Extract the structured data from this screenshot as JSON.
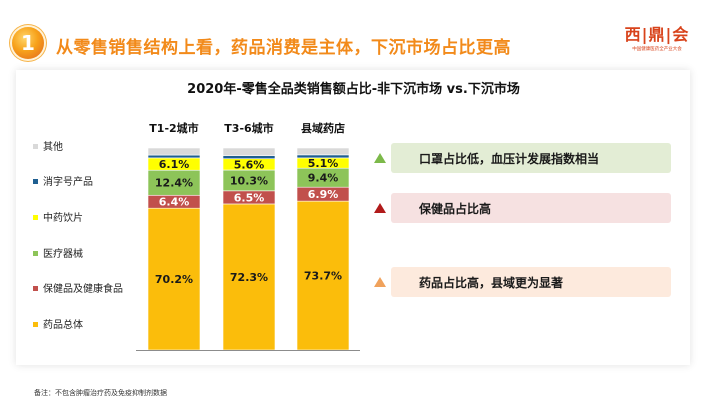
{
  "header": {
    "badge_number": "1",
    "headline": "从零售销售结构上看，药品消费是主体，下沉市场占比更高",
    "logo_text": "西|鼎|会",
    "logo_subtext": "中国健康医药全产业大会"
  },
  "chart_data": {
    "type": "bar",
    "stacked": true,
    "normalized": true,
    "title": "2020年-零售全品类销售额占比-非下沉市场 vs.下沉市场",
    "categories": [
      "T1-2城市",
      "T3-6城市",
      "县域药店"
    ],
    "series": [
      {
        "name": "药品总体",
        "color": "#fbbd0b",
        "values": [
          70.2,
          72.3,
          73.7
        ],
        "labels": [
          "70.2%",
          "72.3%",
          "73.7%"
        ]
      },
      {
        "name": "保健品及健康食品",
        "color": "#c1504c",
        "values": [
          6.4,
          6.5,
          6.9
        ],
        "labels": [
          "6.4%",
          "6.5%",
          "6.9%"
        ]
      },
      {
        "name": "医疗器械",
        "color": "#8dc459",
        "values": [
          12.4,
          10.3,
          9.4
        ],
        "labels": [
          "12.4%",
          "10.3%",
          "9.4%"
        ]
      },
      {
        "name": "中药饮片",
        "color": "#ffff00",
        "values": [
          6.1,
          5.6,
          5.1
        ],
        "labels": [
          "6.1%",
          "5.6%",
          "5.1%"
        ]
      },
      {
        "name": "消字号产品",
        "color": "#1f5f91",
        "values": [
          1.4,
          1.5,
          1.5
        ],
        "labels": [
          "",
          "",
          ""
        ]
      },
      {
        "name": "其他",
        "color": "#d9d9d9",
        "values": [
          3.5,
          3.8,
          3.4
        ],
        "labels": [
          "",
          "",
          ""
        ]
      }
    ],
    "legend": {
      "position": "left",
      "order": [
        "其他",
        "消字号产品",
        "中药饮片",
        "医疗器械",
        "保健品及健康食品",
        "药品总体"
      ]
    },
    "ylim": [
      0,
      100
    ],
    "grid": false
  },
  "callouts": [
    {
      "text": "口罩占比低，血压计发展指数相当",
      "marker": "up-triangle",
      "marker_color": "#7cb94a",
      "bg_color": "#e3edd5"
    },
    {
      "text": "保健品占比高",
      "marker": "up-triangle",
      "marker_color": "#b11a1a",
      "bg_color": "#f6e1e1"
    },
    {
      "text": "药品占比高，县域更为显著",
      "marker": "up-triangle",
      "marker_color": "#f0a25c",
      "bg_color": "#fdeadd"
    }
  ],
  "footnote": "备注：不包含肿瘤治疗药及免疫抑制剂数据"
}
